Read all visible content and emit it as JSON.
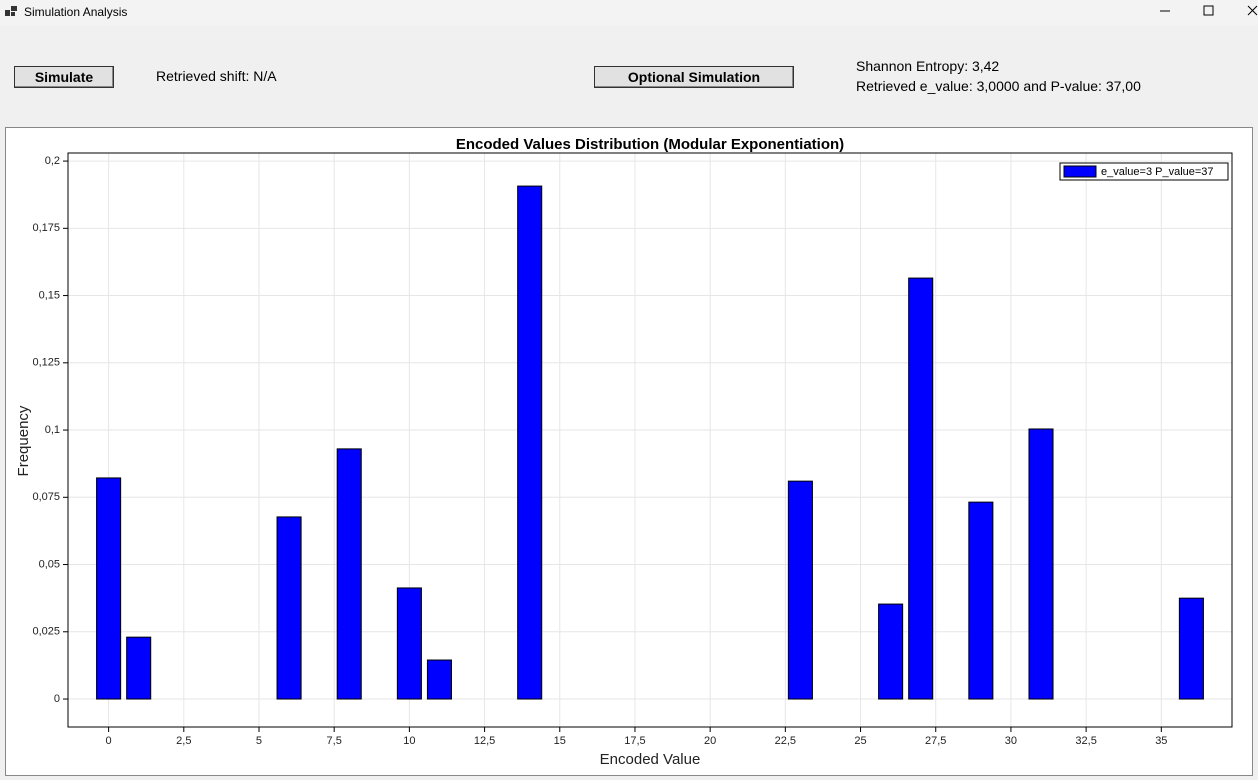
{
  "window": {
    "title": "Simulation Analysis"
  },
  "controls": {
    "simulate_button": "Simulate",
    "retrieved_shift": "Retrieved shift: N/A",
    "optional_button": "Optional Simulation",
    "entropy": "Shannon Entropy: 3,42",
    "retrieved_values": "Retrieved e_value: 3,0000 and P-value: 37,00"
  },
  "chart_data": {
    "type": "bar",
    "title": "Encoded Values Distribution (Modular Exponentiation)",
    "x_label": "Encoded Value",
    "y_label": "Frequency",
    "x": [
      0,
      1,
      6,
      8,
      10,
      11,
      14,
      23,
      26,
      27,
      29,
      31,
      36
    ],
    "series": [
      {
        "name": "e_value=3 P_value=37",
        "color": "#0000ff",
        "values": [
          0.0822,
          0.023,
          0.0677,
          0.093,
          0.0413,
          0.0145,
          0.1907,
          0.081,
          0.0353,
          0.1565,
          0.0732,
          0.1004,
          0.0375
        ]
      }
    ],
    "xlim": [
      -1.35,
      37.35
    ],
    "ylim": [
      -0.0104,
      0.203
    ],
    "xticks": [
      0,
      {
        "value": 2.5,
        "label": "2,5"
      },
      5,
      {
        "value": 7.5,
        "label": "7,5"
      },
      10,
      {
        "value": 12.5,
        "label": "12,5"
      },
      15,
      {
        "value": 17.5,
        "label": "17,5"
      },
      20,
      {
        "value": 22.5,
        "label": "22,5"
      },
      25,
      {
        "value": 27.5,
        "label": "27,5"
      },
      30,
      {
        "value": 32.5,
        "label": "32,5"
      },
      35
    ],
    "yticks": [
      0,
      {
        "value": 0.025,
        "label": "0,025"
      },
      {
        "value": 0.05,
        "label": "0,05"
      },
      {
        "value": 0.075,
        "label": "0,075"
      },
      {
        "value": 0.1,
        "label": "0,1"
      },
      {
        "value": 0.125,
        "label": "0,125"
      },
      {
        "value": 0.15,
        "label": "0,15"
      },
      {
        "value": 0.175,
        "label": "0,175"
      },
      {
        "value": 0.2,
        "label": "0,2"
      }
    ],
    "grid": true,
    "legend": "top-right"
  }
}
